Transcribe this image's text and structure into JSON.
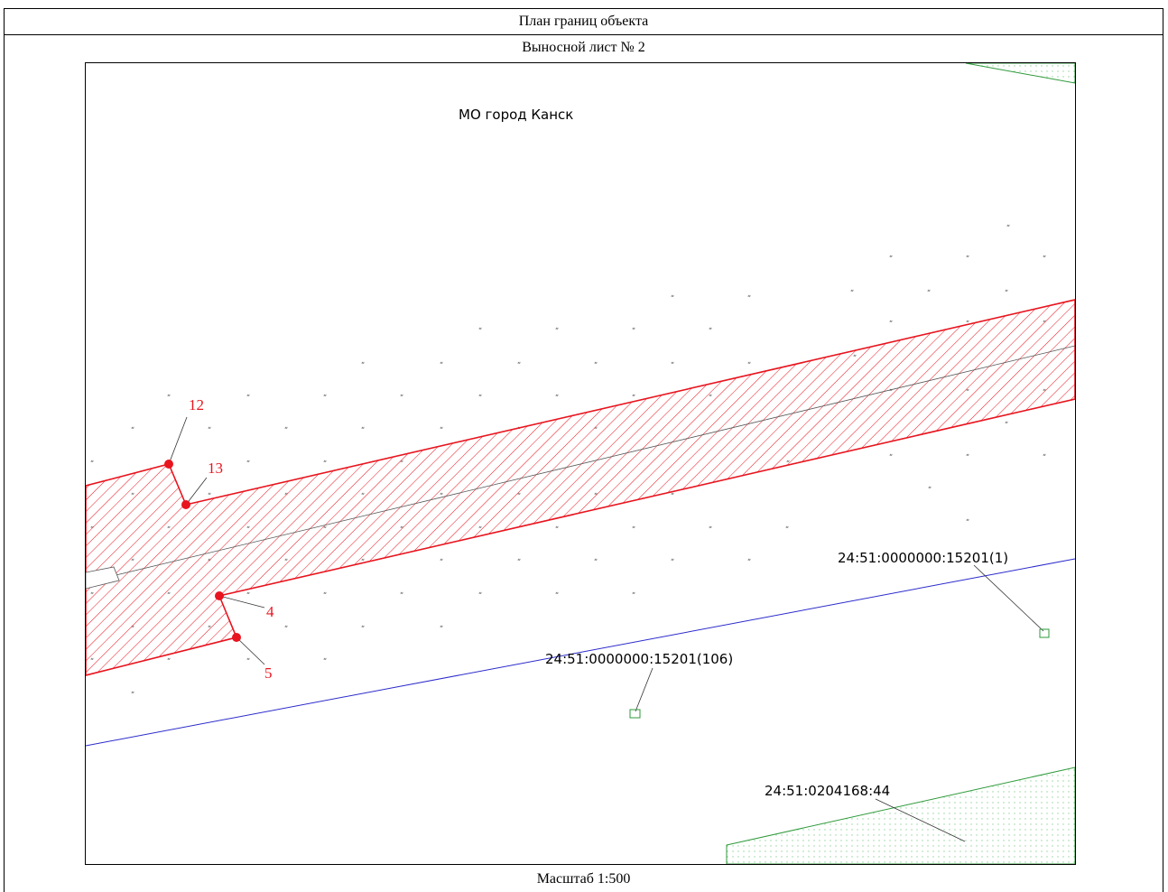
{
  "header": {
    "title": "План границ объекта",
    "sheet": "Выносной лист № 2",
    "scale": "Масштаб 1:500"
  },
  "map": {
    "municipality_label": "МО город Канск",
    "points": [
      {
        "id": "12",
        "label": "12"
      },
      {
        "id": "13",
        "label": "13"
      },
      {
        "id": "4",
        "label": "4"
      },
      {
        "id": "5",
        "label": "5"
      }
    ],
    "parcels": [
      {
        "label": "24:51:0000000:15201(1)"
      },
      {
        "label": "24:51:0000000:15201(106)"
      },
      {
        "label": "24:51:0204168:44"
      }
    ],
    "colors": {
      "object": "#e8141e",
      "road_boundary": "#2a2acc",
      "parcel": "#2e9a3a"
    }
  }
}
